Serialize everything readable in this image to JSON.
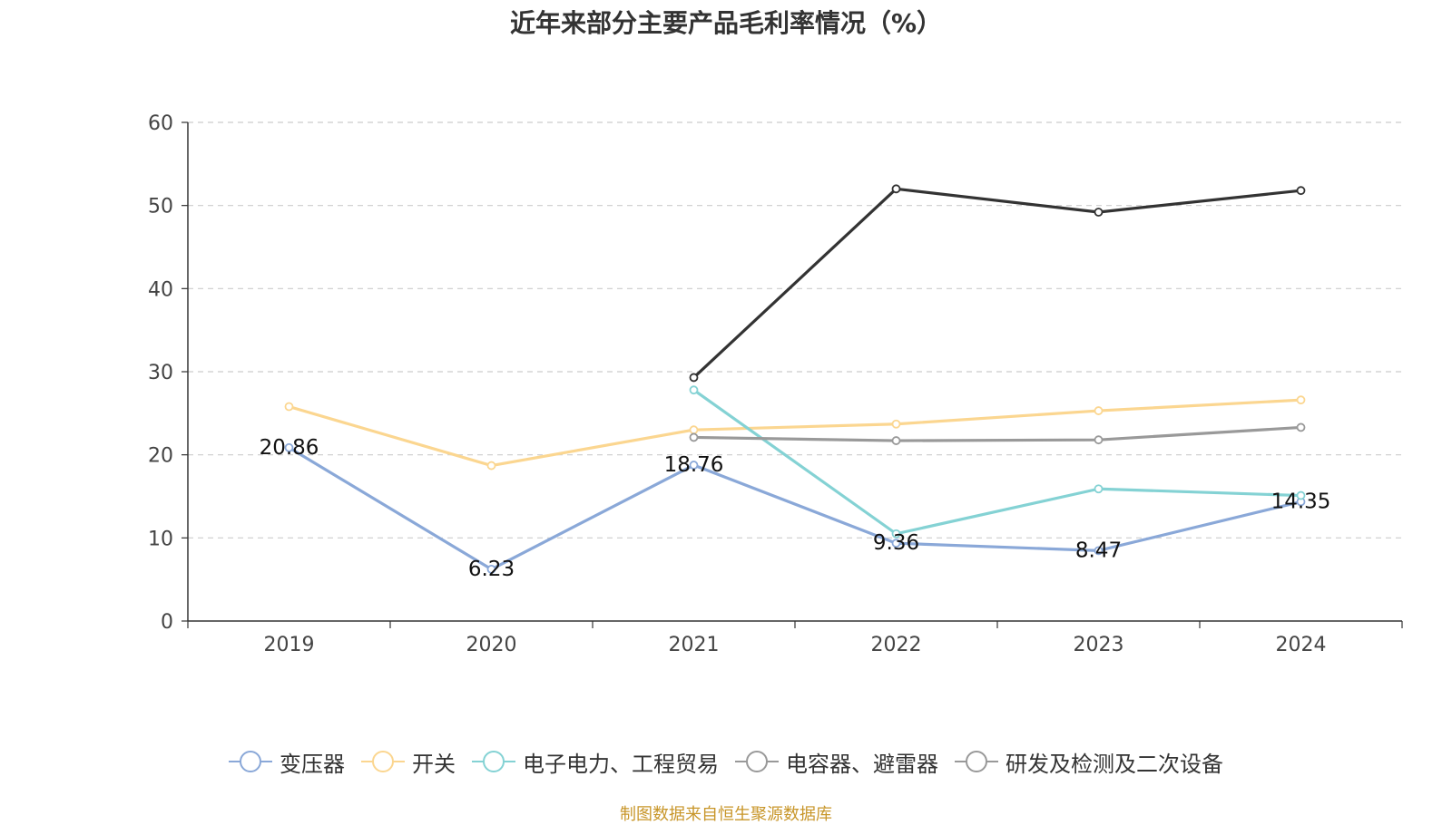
{
  "chart_data": {
    "type": "line",
    "title": "近年来部分主要产品毛利率情况（%）",
    "categories": [
      "2019",
      "2020",
      "2021",
      "2022",
      "2023",
      "2024"
    ],
    "ylim": [
      0,
      60
    ],
    "yticks": [
      "0",
      "10",
      "20",
      "30",
      "40",
      "50",
      "60"
    ],
    "grid": true,
    "legend_position": "bottom",
    "series": [
      {
        "name": "变压器",
        "color": "#8aa8d8",
        "values": [
          20.86,
          6.23,
          18.76,
          9.36,
          8.47,
          14.35
        ],
        "labels": [
          "20.86",
          "6.23",
          "18.76",
          "9.36",
          "8.47",
          "14.35"
        ]
      },
      {
        "name": "开关",
        "color": "#fbd690",
        "values": [
          25.8,
          18.7,
          23.0,
          23.7,
          25.3,
          26.6
        ]
      },
      {
        "name": "电子电力、工程贸易",
        "color": "#84d2d4",
        "values": [
          null,
          null,
          27.8,
          10.5,
          15.9,
          15.1
        ]
      },
      {
        "name": "电容器、避雷器",
        "color": "#999999",
        "values": [
          null,
          null,
          22.1,
          21.7,
          21.8,
          23.3
        ]
      },
      {
        "name": "研发及检测及二次设备",
        "color": "#333333",
        "legend_color": "#999999",
        "values": [
          null,
          null,
          29.3,
          52.0,
          49.2,
          51.8
        ]
      }
    ]
  },
  "source": "制图数据来自恒生聚源数据库"
}
